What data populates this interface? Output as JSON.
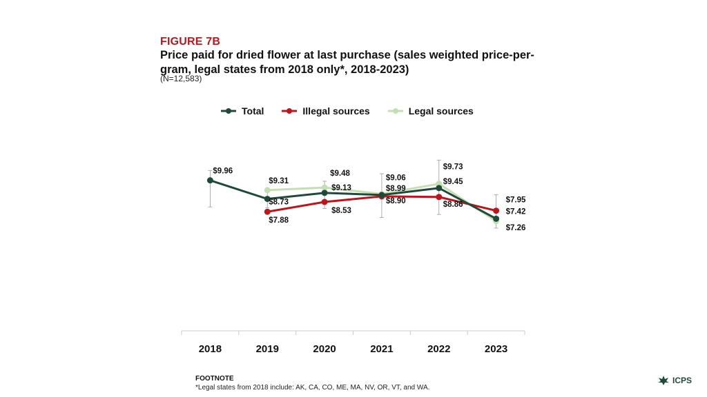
{
  "figure": {
    "label": "FIGURE 7B",
    "title": "Price paid for dried flower at last purchase (sales weighted price-per-gram, legal states from 2018 only*, 2018-2023)",
    "n_note": "(N=12,583)"
  },
  "colors": {
    "total": "#1f4a3a",
    "illegal": "#c0141b",
    "legal": "#c5dfb4",
    "errorbar": "#9a9a9a",
    "axis": "#cccccc"
  },
  "chart_data": {
    "type": "line",
    "title": "Price paid for dried flower at last purchase (sales weighted price-per-gram, legal states from 2018 only*, 2018-2023)",
    "xlabel": "",
    "ylabel": "",
    "categories": [
      "2018",
      "2019",
      "2020",
      "2021",
      "2022",
      "2023"
    ],
    "ylim": [
      0,
      13
    ],
    "legend_position": "top",
    "series": [
      {
        "name": "Total",
        "color_key": "total",
        "values": [
          9.96,
          8.73,
          9.13,
          8.99,
          9.45,
          7.42
        ],
        "labels": [
          "$9.96",
          "$8.73",
          "",
          "",
          "",
          "$7.42"
        ],
        "error_low": [
          8.2,
          8.15,
          8.1,
          7.5,
          7.7,
          6.8
        ],
        "error_high": [
          10.6,
          9.35,
          9.9,
          10.4,
          11.3,
          9.0
        ]
      },
      {
        "name": "Illegal sources",
        "color_key": "illegal",
        "values": [
          null,
          7.88,
          8.53,
          8.9,
          8.86,
          7.95
        ],
        "labels": [
          "",
          "$7.88",
          "$8.53",
          "$8.90",
          "$8.86",
          "$7.95"
        ]
      },
      {
        "name": "Legal sources",
        "color_key": "legal",
        "values": [
          null,
          9.31,
          9.48,
          9.06,
          9.73,
          7.26
        ],
        "labels": [
          "",
          "$9.31",
          "$9.48",
          "$9.06",
          "$9.73",
          "$7.26"
        ]
      }
    ],
    "annotations": [
      "$9.13",
      "$8.99",
      "$9.45"
    ]
  },
  "footnote": {
    "title": "FOOTNOTE",
    "text": "*Legal states from 2018 include: AK, CA, CO, ME, MA, NV, OR, VT, and WA."
  },
  "brand": {
    "name": "ICPS"
  }
}
